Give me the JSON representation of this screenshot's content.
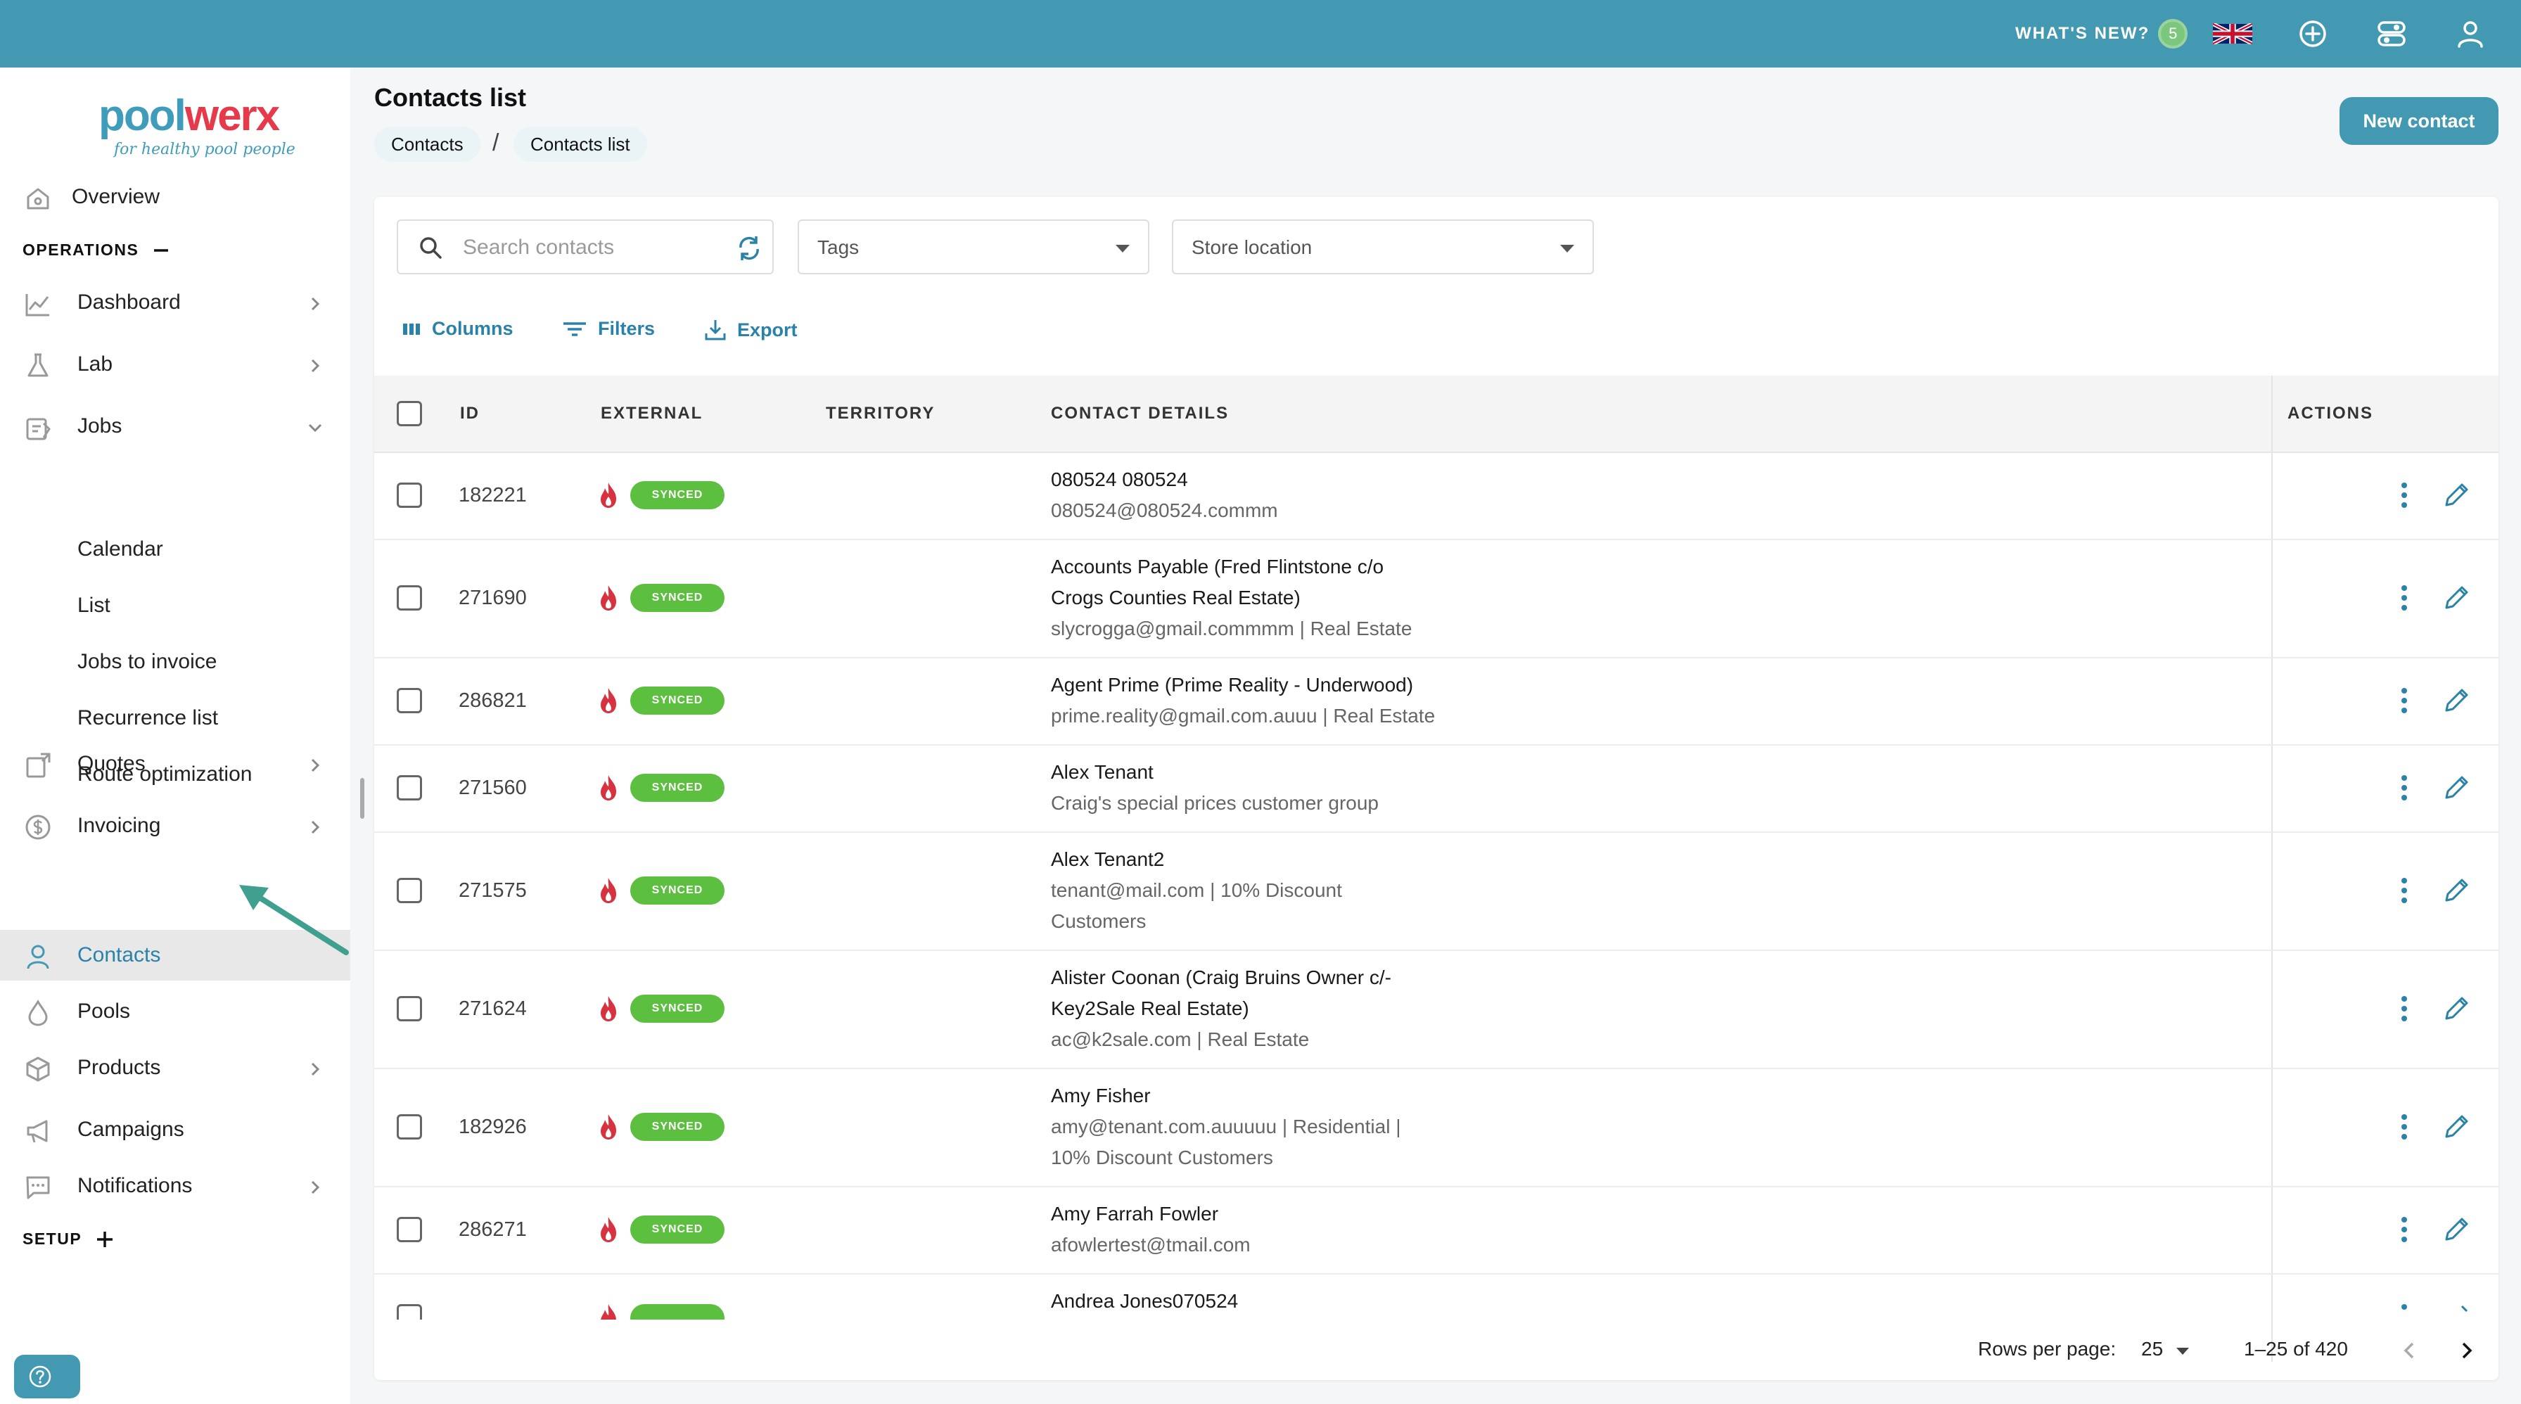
{
  "topbar": {
    "whats_new_label": "WHAT'S NEW?",
    "whats_new_count": "5",
    "icons": [
      "uk-flag-icon",
      "add-circle-icon",
      "toggles-icon",
      "user-account-icon"
    ],
    "bg_color": "#4499b2"
  },
  "logo": {
    "part1": "pool",
    "part2": "werx",
    "tagline": "for healthy pool people"
  },
  "sidebar": {
    "overview": "Overview",
    "operations_label": "OPERATIONS",
    "items": {
      "dashboard": "Dashboard",
      "lab": "Lab",
      "jobs": "Jobs",
      "calendar": "Calendar",
      "list": "List",
      "jobs_to_invoice": "Jobs to invoice",
      "recurrence_list": "Recurrence list",
      "route_optimization": "Route optimization",
      "quotes": "Quotes",
      "invoicing": "Invoicing",
      "contacts": "Contacts",
      "pools": "Pools",
      "products": "Products",
      "campaigns": "Campaigns",
      "notifications": "Notifications"
    },
    "setup_label": "SETUP",
    "active_item": "Contacts"
  },
  "header": {
    "title": "Contacts list",
    "breadcrumb": [
      "Contacts",
      "Contacts list"
    ],
    "breadcrumb_separator": "/",
    "new_contact_label": "New contact"
  },
  "filters": {
    "search_placeholder": "Search contacts",
    "tags_label": "Tags",
    "store_location_label": "Store location"
  },
  "toolbar": {
    "columns": "Columns",
    "filters": "Filters",
    "export": "Export"
  },
  "table": {
    "headers": {
      "id": "ID",
      "external": "EXTERNAL",
      "territory": "TERRITORY",
      "contact_details": "CONTACT DETAILS",
      "actions": "ACTIONS"
    },
    "synced_label": "SYNCED",
    "rows": [
      {
        "id": "182221",
        "lines": [
          "080524 080524",
          "080524@080524.commm"
        ]
      },
      {
        "id": "271690",
        "lines": [
          "Accounts Payable (Fred Flintstone c/o",
          "Crogs Counties Real Estate)",
          "slycrogga@gmail.commmm | Real Estate"
        ]
      },
      {
        "id": "286821",
        "lines": [
          "Agent Prime (Prime Reality - Underwood)",
          "prime.reality@gmail.com.auuu | Real Estate"
        ]
      },
      {
        "id": "271560",
        "lines": [
          "Alex Tenant",
          "Craig's special prices customer group"
        ]
      },
      {
        "id": "271575",
        "lines": [
          "Alex Tenant2",
          "tenant@mail.com | 10% Discount",
          "Customers"
        ]
      },
      {
        "id": "271624",
        "lines": [
          "Alister Coonan (Craig Bruins Owner c/-",
          "Key2Sale Real Estate)",
          "ac@k2sale.com | Real Estate"
        ]
      },
      {
        "id": "182926",
        "lines": [
          "Amy Fisher",
          "amy@tenant.com.auuuuu | Residential |",
          "10% Discount Customers"
        ]
      },
      {
        "id": "286271",
        "lines": [
          "Amy Farrah Fowler",
          "afowlertest@tmail.com"
        ]
      },
      {
        "id": "",
        "lines": [
          "Andrea Jones070524"
        ]
      }
    ]
  },
  "pagination": {
    "rows_per_page_label": "Rows per page:",
    "rows_per_page": "25",
    "range": "1–25 of 420"
  },
  "colors": {
    "accent": "#4499b2",
    "link": "#2b82a8",
    "synced": "#5cbf3f",
    "flame": "#d9323f",
    "brand_red": "#e63a4b"
  }
}
